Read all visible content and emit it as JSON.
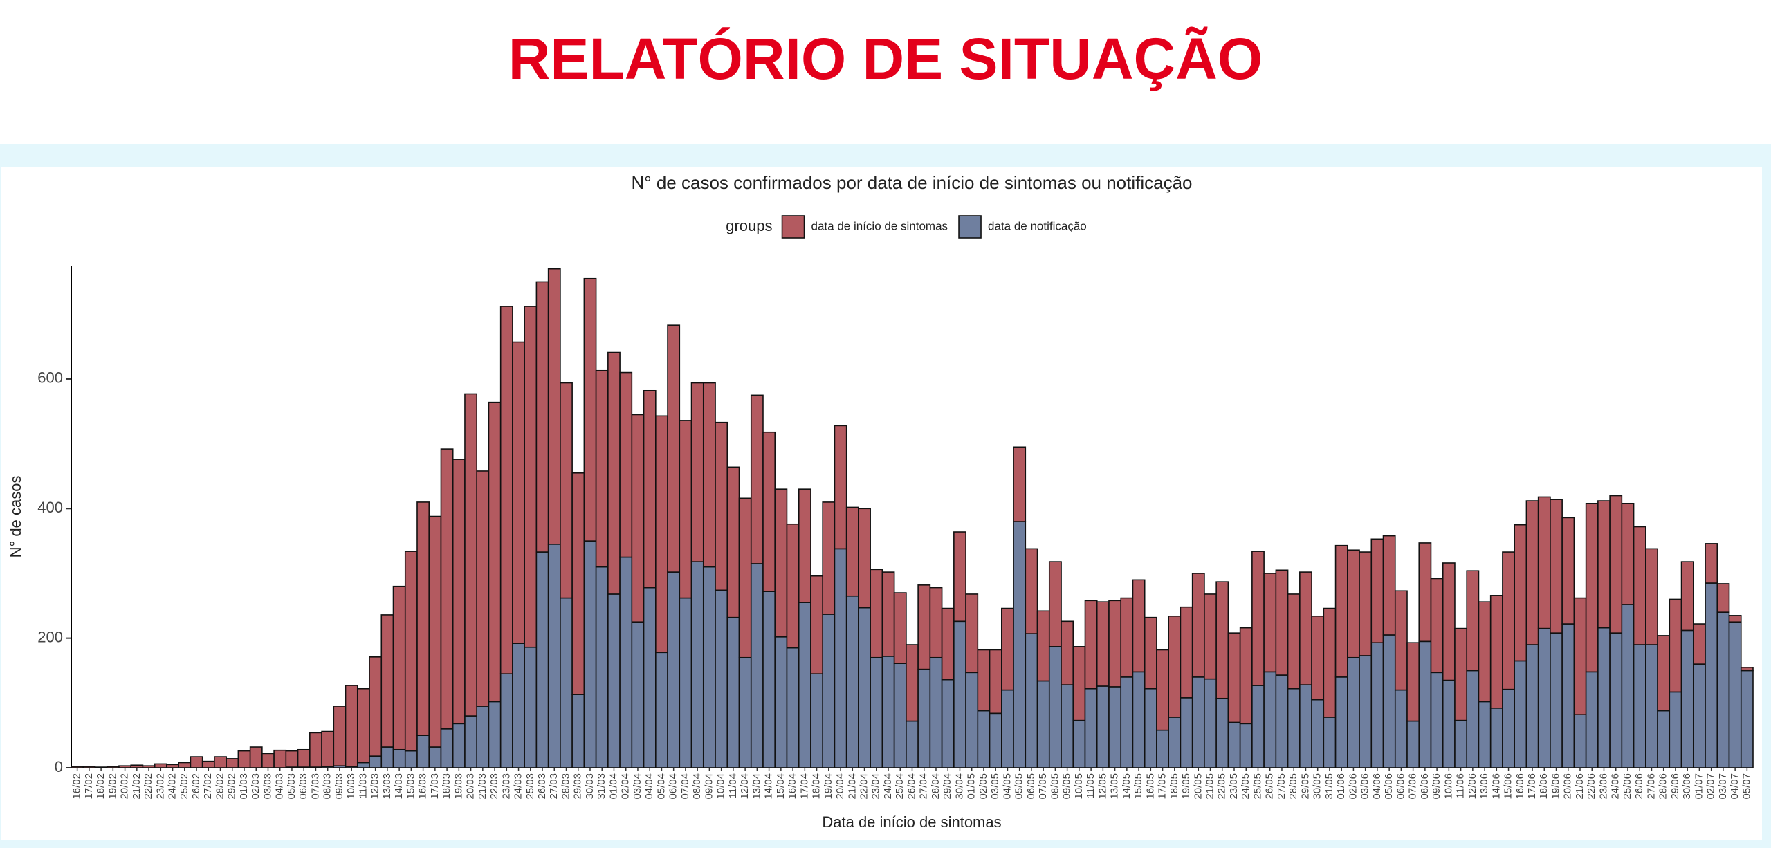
{
  "header": {
    "title": "RELATÓRIO DE SITUAÇÃO"
  },
  "chart_data": {
    "type": "bar",
    "stacked": true,
    "title": "N° de casos confirmados por data de início de sintomas ou notificação",
    "legend_title": "groups",
    "xlabel": "Data de início de sintomas",
    "ylabel": "N° de casos",
    "categories": [
      "16/02",
      "17/02",
      "18/02",
      "19/02",
      "20/02",
      "21/02",
      "22/02",
      "23/02",
      "24/02",
      "25/02",
      "26/02",
      "27/02",
      "28/02",
      "29/02",
      "01/03",
      "02/03",
      "03/03",
      "04/03",
      "05/03",
      "06/03",
      "07/03",
      "08/03",
      "09/03",
      "10/03",
      "11/03",
      "12/03",
      "13/03",
      "14/03",
      "15/03",
      "16/03",
      "17/03",
      "18/03",
      "19/03",
      "20/03",
      "21/03",
      "22/03",
      "23/03",
      "24/03",
      "25/03",
      "26/03",
      "27/03",
      "28/03",
      "29/03",
      "30/03",
      "31/03",
      "01/04",
      "02/04",
      "03/04",
      "04/04",
      "05/04",
      "06/04",
      "07/04",
      "08/04",
      "09/04",
      "10/04",
      "11/04",
      "12/04",
      "13/04",
      "14/04",
      "15/04",
      "16/04",
      "17/04",
      "18/04",
      "19/04",
      "20/04",
      "21/04",
      "22/04",
      "23/04",
      "24/04",
      "25/04",
      "26/04",
      "27/04",
      "28/04",
      "29/04",
      "30/04",
      "01/05",
      "02/05",
      "03/05",
      "04/05",
      "05/05",
      "06/05",
      "07/05",
      "08/05",
      "09/05",
      "10/05",
      "11/05",
      "12/05",
      "13/05",
      "14/05",
      "15/05",
      "16/05",
      "17/05",
      "18/05",
      "19/05",
      "20/05",
      "21/05",
      "22/05",
      "23/05",
      "24/05",
      "25/05",
      "26/05",
      "27/05",
      "28/05",
      "29/05",
      "30/05",
      "31/05",
      "01/06",
      "02/06",
      "03/06",
      "04/06",
      "05/06",
      "06/06",
      "07/06",
      "08/06",
      "09/06",
      "10/06",
      "11/06",
      "12/06",
      "13/06",
      "14/06",
      "15/06",
      "16/06",
      "17/06",
      "18/06",
      "19/06",
      "20/06",
      "21/06",
      "22/06",
      "23/06",
      "24/06",
      "25/06",
      "26/06",
      "27/06",
      "28/06",
      "29/06",
      "30/06",
      "01/07",
      "02/07",
      "03/07",
      "04/07",
      "05/07"
    ],
    "series": [
      {
        "name": "data de início de sintomas",
        "color": "#b35a60",
        "values": [
          2,
          2,
          1,
          2,
          3,
          4,
          3,
          6,
          5,
          8,
          17,
          10,
          17,
          14,
          26,
          32,
          22,
          27,
          25,
          27,
          53,
          54,
          92,
          125,
          114,
          153,
          204,
          252,
          308,
          360,
          356,
          432,
          408,
          497,
          363,
          462,
          567,
          465,
          526,
          417,
          425,
          332,
          342,
          405,
          303,
          373,
          285,
          320,
          304,
          365,
          381,
          274,
          276,
          284,
          259,
          232,
          246,
          260,
          246,
          228,
          191,
          175,
          151,
          173,
          190,
          137,
          153,
          136,
          130,
          109,
          118,
          130,
          108,
          110,
          138,
          121,
          94,
          98,
          126,
          115,
          131,
          108,
          131,
          98,
          114,
          136,
          130,
          133,
          122,
          142,
          110,
          124,
          156,
          140,
          160,
          131,
          180,
          138,
          148,
          207,
          152,
          162,
          146,
          174,
          129,
          168,
          203,
          166,
          160,
          160,
          153,
          153,
          121,
          152,
          145,
          181,
          142,
          154,
          154,
          174,
          212,
          210,
          222,
          203,
          206,
          164,
          180,
          260,
          196,
          212,
          156,
          182,
          148,
          116,
          143,
          106,
          62,
          61,
          44,
          10,
          5
        ]
      },
      {
        "name": "data de notificação",
        "color": "#6f7f9f",
        "values": [
          0,
          0,
          0,
          0,
          0,
          0,
          0,
          0,
          0,
          0,
          0,
          0,
          0,
          0,
          0,
          0,
          0,
          0,
          1,
          1,
          1,
          2,
          3,
          2,
          8,
          18,
          32,
          28,
          26,
          50,
          32,
          60,
          68,
          80,
          95,
          102,
          145,
          192,
          186,
          333,
          345,
          262,
          113,
          350,
          310,
          268,
          325,
          225,
          278,
          178,
          302,
          262,
          318,
          310,
          274,
          232,
          170,
          315,
          272,
          202,
          185,
          255,
          145,
          237,
          338,
          265,
          247,
          170,
          172,
          161,
          72,
          152,
          170,
          136,
          226,
          147,
          88,
          84,
          120,
          380,
          207,
          134,
          187,
          128,
          73,
          122,
          126,
          125,
          140,
          148,
          122,
          58,
          78,
          108,
          140,
          137,
          107,
          70,
          68,
          127,
          148,
          143,
          122,
          128,
          105,
          78,
          140,
          170,
          173,
          193,
          205,
          120,
          72,
          195,
          147,
          135,
          73,
          150,
          102,
          92,
          121,
          165,
          190,
          215,
          208,
          222,
          82,
          148,
          216,
          208,
          252,
          190,
          190,
          88,
          117,
          212,
          160,
          285,
          240,
          225,
          150
        ]
      }
    ],
    "ylim": [
      0,
      775
    ],
    "yticks": [
      0,
      200,
      400,
      600
    ],
    "grid": false
  }
}
